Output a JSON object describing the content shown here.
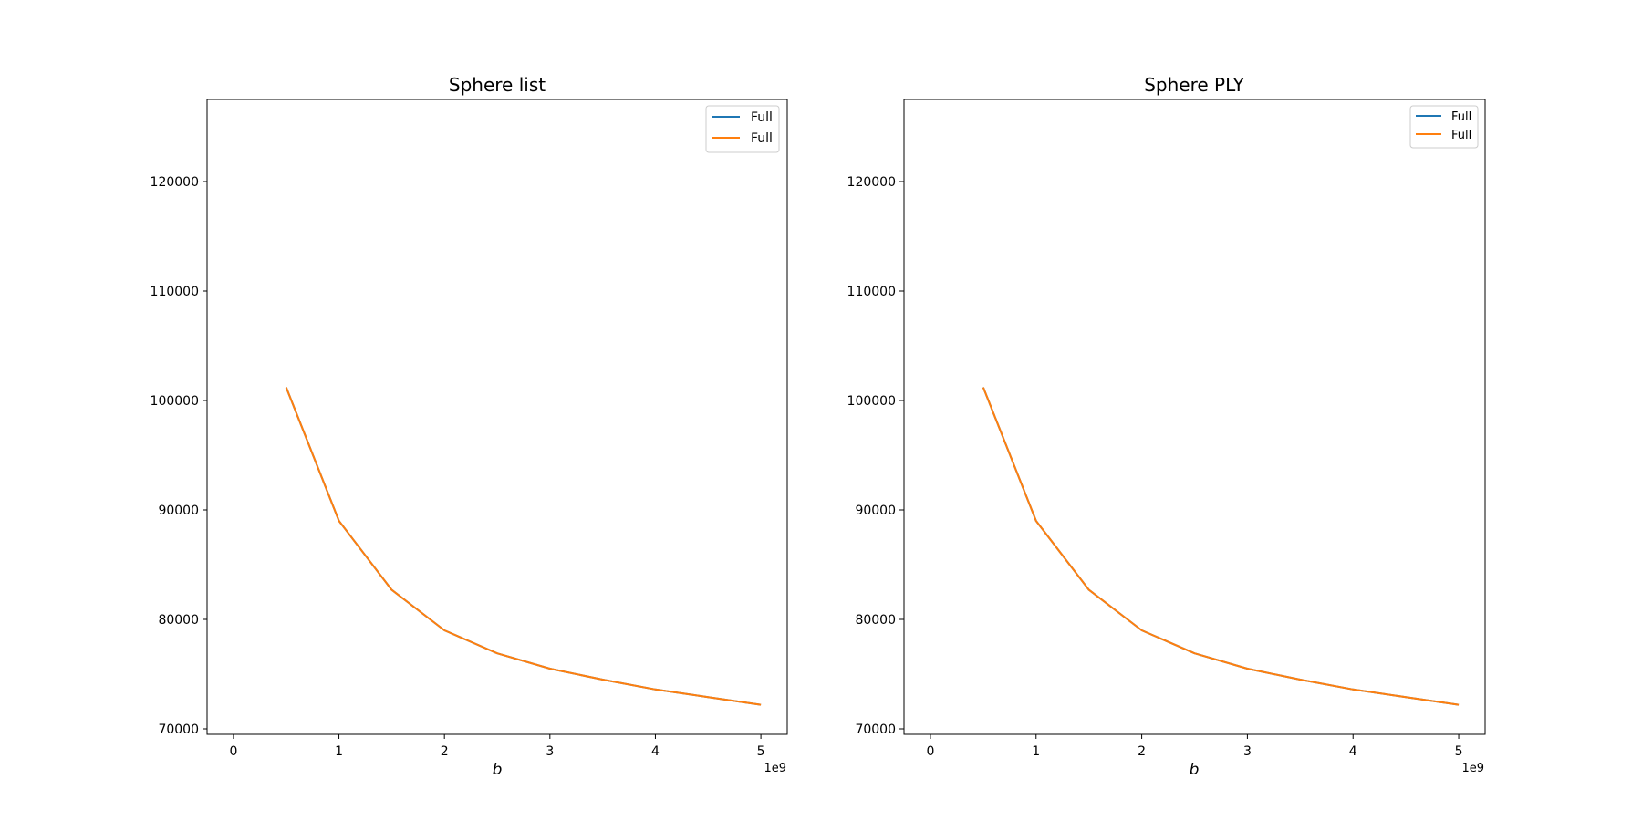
{
  "chart_data": [
    {
      "type": "line",
      "title": "Sphere list",
      "xlabel": "b",
      "x_offset_label": "1e9",
      "xlim": [
        -0.25,
        5.25
      ],
      "ylim": [
        69500,
        127500
      ],
      "xticks": [
        0,
        1,
        2,
        3,
        4,
        5
      ],
      "xtick_labels": [
        "0",
        "1",
        "2",
        "3",
        "4",
        "5"
      ],
      "yticks": [
        70000,
        80000,
        90000,
        100000,
        110000,
        120000
      ],
      "ytick_labels": [
        "70000",
        "80000",
        "90000",
        "100000",
        "110000",
        "120000"
      ],
      "grid": false,
      "legend": "top-right",
      "series": [
        {
          "name": "Full",
          "color": "#1f77b4",
          "x": [
            0.5,
            1,
            1.5,
            2,
            2.5,
            3,
            3.5,
            4,
            4.5,
            5
          ],
          "y": [
            101200,
            89000,
            82700,
            79000,
            76900,
            75500,
            74500,
            73600,
            72900,
            72200
          ]
        },
        {
          "name": "Full",
          "color": "#ff7f0e",
          "x": [
            0.5,
            1,
            1.5,
            2,
            2.5,
            3,
            3.5,
            4,
            4.5,
            5
          ],
          "y": [
            101200,
            89000,
            82700,
            79000,
            76900,
            75500,
            74500,
            73600,
            72900,
            72200
          ]
        }
      ]
    },
    {
      "type": "line",
      "title": "Sphere PLY",
      "xlabel": "b",
      "x_offset_label": "1e9",
      "xlim": [
        -0.25,
        5.25
      ],
      "ylim": [
        69500,
        127500
      ],
      "xticks": [
        0,
        1,
        2,
        3,
        4,
        5
      ],
      "xtick_labels": [
        "0",
        "1",
        "2",
        "3",
        "4",
        "5"
      ],
      "yticks": [
        70000,
        80000,
        90000,
        100000,
        110000,
        120000
      ],
      "ytick_labels": [
        "70000",
        "80000",
        "90000",
        "100000",
        "110000",
        "120000"
      ],
      "grid": false,
      "legend": "top-right",
      "series": [
        {
          "name": "Full",
          "color": "#1f77b4",
          "x": [
            0.5,
            1,
            1.5,
            2,
            2.5,
            3,
            3.5,
            4,
            4.5,
            5
          ],
          "y": [
            101200,
            89000,
            82700,
            79000,
            76900,
            75500,
            74500,
            73600,
            72900,
            72200
          ]
        },
        {
          "name": "Full",
          "color": "#ff7f0e",
          "x": [
            0.5,
            1,
            1.5,
            2,
            2.5,
            3,
            3.5,
            4,
            4.5,
            5
          ],
          "y": [
            101200,
            89000,
            82700,
            79000,
            76900,
            75500,
            74500,
            73600,
            72900,
            72200
          ]
        }
      ]
    }
  ]
}
